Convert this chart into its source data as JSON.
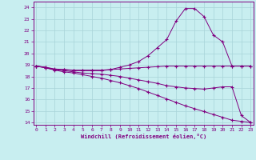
{
  "xlabel": "Windchill (Refroidissement éolien,°C)",
  "background_color": "#c8eef0",
  "line_color": "#800080",
  "grid_color": "#a8d4d8",
  "x": [
    0,
    1,
    2,
    3,
    4,
    5,
    6,
    7,
    8,
    9,
    10,
    11,
    12,
    13,
    14,
    15,
    16,
    17,
    18,
    19,
    20,
    21,
    22,
    23
  ],
  "line1": [
    18.9,
    18.8,
    18.6,
    18.6,
    18.5,
    18.5,
    18.5,
    18.5,
    18.6,
    18.8,
    19.0,
    19.3,
    19.8,
    20.5,
    21.2,
    22.8,
    23.9,
    23.9,
    23.2,
    21.6,
    21.0,
    18.9,
    18.9,
    18.9
  ],
  "line2": [
    18.9,
    18.8,
    18.65,
    18.6,
    18.55,
    18.55,
    18.55,
    18.55,
    18.6,
    18.65,
    18.7,
    18.75,
    18.8,
    18.85,
    18.9,
    18.9,
    18.9,
    18.9,
    18.9,
    18.9,
    18.9,
    18.9,
    18.9,
    18.9
  ],
  "line3": [
    18.9,
    18.75,
    18.6,
    18.5,
    18.4,
    18.3,
    18.25,
    18.2,
    18.1,
    18.0,
    17.85,
    17.7,
    17.55,
    17.4,
    17.2,
    17.1,
    17.0,
    16.95,
    16.9,
    17.0,
    17.1,
    17.1,
    14.6,
    14.0
  ],
  "line4": [
    18.9,
    18.75,
    18.55,
    18.4,
    18.3,
    18.15,
    18.0,
    17.85,
    17.65,
    17.45,
    17.2,
    16.95,
    16.65,
    16.35,
    16.05,
    15.75,
    15.45,
    15.2,
    14.95,
    14.7,
    14.45,
    14.2,
    14.1,
    14.0
  ],
  "ylim": [
    13.8,
    24.5
  ],
  "yticks": [
    14,
    15,
    16,
    17,
    18,
    19,
    20,
    21,
    22,
    23,
    24
  ],
  "xticks": [
    0,
    1,
    2,
    3,
    4,
    5,
    6,
    7,
    8,
    9,
    10,
    11,
    12,
    13,
    14,
    15,
    16,
    17,
    18,
    19,
    20,
    21,
    22,
    23
  ],
  "xlim": [
    -0.3,
    23.3
  ]
}
